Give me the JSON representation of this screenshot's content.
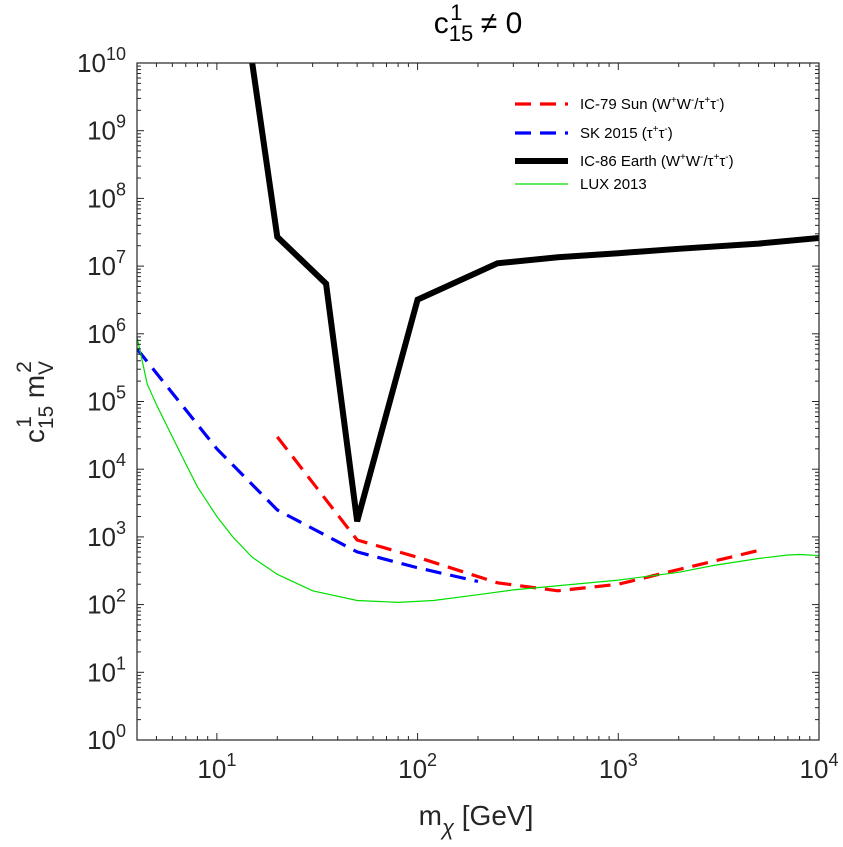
{
  "chart_data": {
    "type": "line",
    "title": {
      "base": "c",
      "sub": "15",
      "sup": "1",
      "suffix": " ≠ 0"
    },
    "xlabel": {
      "base": "m",
      "sub": "χ",
      "suffix": " [GeV]"
    },
    "ylabel": {
      "base": "c",
      "sub1": "15",
      "sup1": "1",
      "mid": " m",
      "sub2": "V",
      "sup2": "2"
    },
    "xscale": "log",
    "yscale": "log",
    "xlim": [
      4,
      10000
    ],
    "ylim": [
      1,
      10000000000
    ],
    "x_ticks": [
      {
        "base": "10",
        "exp": "1",
        "value": 10
      },
      {
        "base": "10",
        "exp": "2",
        "value": 100
      },
      {
        "base": "10",
        "exp": "3",
        "value": 1000
      },
      {
        "base": "10",
        "exp": "4",
        "value": 10000
      }
    ],
    "y_ticks": [
      {
        "base": "10",
        "exp": "0",
        "value": 1
      },
      {
        "base": "10",
        "exp": "1",
        "value": 10
      },
      {
        "base": "10",
        "exp": "2",
        "value": 100
      },
      {
        "base": "10",
        "exp": "3",
        "value": 1000
      },
      {
        "base": "10",
        "exp": "4",
        "value": 10000
      },
      {
        "base": "10",
        "exp": "5",
        "value": 100000
      },
      {
        "base": "10",
        "exp": "6",
        "value": 1000000
      },
      {
        "base": "10",
        "exp": "7",
        "value": 10000000
      },
      {
        "base": "10",
        "exp": "8",
        "value": 100000000
      },
      {
        "base": "10",
        "exp": "9",
        "value": 1000000000
      },
      {
        "base": "10",
        "exp": "10",
        "value": 10000000000
      }
    ],
    "grid": false,
    "legend_position": "top-right",
    "series": [
      {
        "key": "ic79",
        "name": "IC-79 Sun (W⁺W⁻/τ⁺τ⁻)",
        "legend": [
          {
            "t": "IC-79 Sun (W"
          },
          {
            "t": "+",
            "sup": true
          },
          {
            "t": "W"
          },
          {
            "t": "-",
            "sup": true
          },
          {
            "t": "/τ"
          },
          {
            "t": "+",
            "sup": true
          },
          {
            "t": "τ"
          },
          {
            "t": "-",
            "sup": true
          },
          {
            "t": ")"
          }
        ],
        "color": "#ff0000",
        "style": "dashed",
        "x": [
          20,
          50,
          100,
          250,
          500,
          1000,
          2000,
          5000
        ],
        "y": [
          30000,
          900,
          500,
          210,
          160,
          200,
          330,
          630
        ]
      },
      {
        "key": "sk2015",
        "name": "SK 2015 (τ⁺τ⁻)",
        "legend": [
          {
            "t": "SK 2015 (τ"
          },
          {
            "t": "+",
            "sup": true
          },
          {
            "t": "τ"
          },
          {
            "t": "-",
            "sup": true
          },
          {
            "t": ")"
          }
        ],
        "color": "#0000ff",
        "style": "dashed",
        "x": [
          4,
          10,
          20,
          50,
          100,
          200
        ],
        "y": [
          600000,
          20000,
          2500,
          600,
          350,
          220
        ]
      },
      {
        "key": "ic86",
        "name": "IC-86 Earth (W⁺W⁻/τ⁺τ⁻)",
        "legend": [
          {
            "t": "IC-86 Earth (W"
          },
          {
            "t": "+",
            "sup": true
          },
          {
            "t": "W"
          },
          {
            "t": "-",
            "sup": true
          },
          {
            "t": "/τ"
          },
          {
            "t": "+",
            "sup": true
          },
          {
            "t": "τ"
          },
          {
            "t": "-",
            "sup": true
          },
          {
            "t": ")"
          }
        ],
        "color": "#000000",
        "style": "thick",
        "x": [
          15,
          20,
          35,
          50,
          100,
          250,
          500,
          1000,
          2000,
          5000,
          10000
        ],
        "y": [
          10000000000,
          27000000,
          5500000,
          1700,
          3200000,
          11000000,
          13500000,
          15500000,
          18000000,
          21500000,
          26000000
        ]
      },
      {
        "key": "lux",
        "name": "LUX 2013",
        "legend": [
          {
            "t": "LUX 2013"
          }
        ],
        "color": "#00e000",
        "style": "thin",
        "x": [
          4,
          4.5,
          5,
          6,
          7,
          8,
          10,
          12,
          15,
          20,
          30,
          50,
          80,
          120,
          200,
          300,
          500,
          1000,
          2000,
          3000,
          5000,
          7000,
          8000,
          10000
        ],
        "y": [
          900000,
          180000,
          90000,
          30000,
          12000,
          5500,
          2000,
          1000,
          500,
          280,
          160,
          115,
          108,
          115,
          140,
          165,
          190,
          230,
          300,
          380,
          480,
          540,
          550,
          530
        ]
      }
    ]
  }
}
